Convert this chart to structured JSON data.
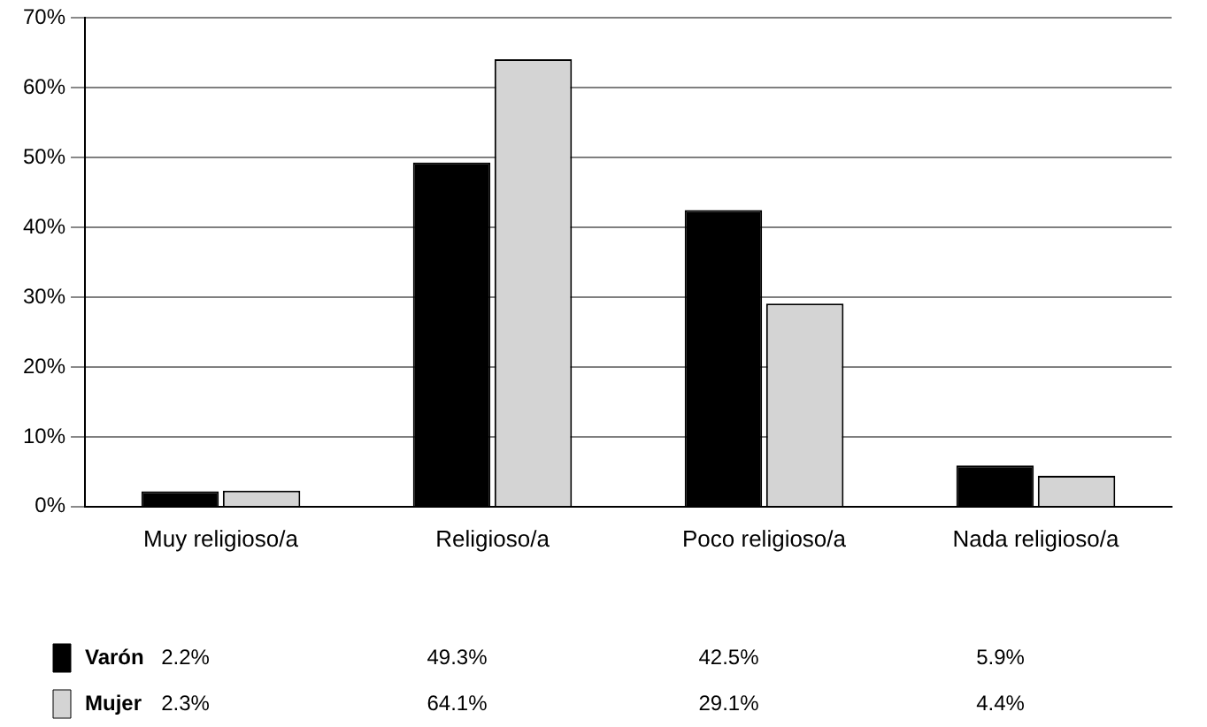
{
  "chart_data": {
    "type": "bar",
    "categories": [
      "Muy religioso/a",
      "Religioso/a",
      "Poco religioso/a",
      "Nada religioso/a"
    ],
    "series": [
      {
        "name": "Varón",
        "color": "#000000",
        "values": [
          2.2,
          49.3,
          42.5,
          5.9
        ],
        "value_labels": [
          "2.2%",
          "49.3%",
          "42.5%",
          "5.9%"
        ]
      },
      {
        "name": "Mujer",
        "color": "#d4d4d4",
        "values": [
          2.3,
          64.1,
          29.1,
          4.4
        ],
        "value_labels": [
          "2.3%",
          "64.1%",
          "29.1%",
          "4.4%"
        ]
      }
    ],
    "ylim": [
      0,
      70
    ],
    "yticks": [
      {
        "value": 0,
        "label": "0%"
      },
      {
        "value": 10,
        "label": "10%"
      },
      {
        "value": 20,
        "label": "20%"
      },
      {
        "value": 30,
        "label": "30%"
      },
      {
        "value": 40,
        "label": "40%"
      },
      {
        "value": 50,
        "label": "50%"
      },
      {
        "value": 60,
        "label": "60%"
      },
      {
        "value": 70,
        "label": "70%"
      }
    ],
    "grid": "y",
    "legend": "bottom left"
  }
}
